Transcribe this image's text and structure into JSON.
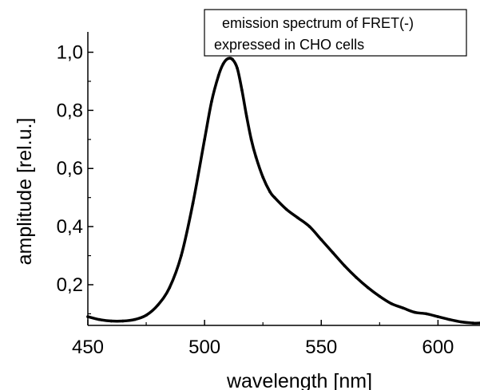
{
  "chart_data": {
    "type": "line",
    "title": "",
    "xlabel": "wavelength [nm]",
    "ylabel": "amplitude [rel.u.]",
    "xlim": [
      450,
      618
    ],
    "ylim": [
      0.06,
      1.07
    ],
    "x_ticks": [
      450,
      500,
      550,
      600
    ],
    "x_tick_labels": [
      "450",
      "500",
      "550",
      "600"
    ],
    "y_ticks": [
      0.2,
      0.4,
      0.6,
      0.8,
      1.0
    ],
    "y_tick_labels": [
      "0,2",
      "0,4",
      "0,6",
      "0,8",
      "1,0"
    ],
    "grid": false,
    "legend_position": "top-right",
    "legend_lines": [
      "emission spectrum of FRET(-)",
      "expressed in CHO cells"
    ],
    "line_color": "#000000",
    "series": [
      {
        "x": [
          450,
          455,
          460,
          465,
          470,
          475,
          480,
          485,
          490,
          495,
          500,
          503,
          506,
          508,
          510,
          512,
          514,
          516,
          518,
          520,
          522,
          525,
          528,
          530,
          535,
          540,
          545,
          550,
          555,
          560,
          565,
          570,
          575,
          580,
          585,
          590,
          595,
          600,
          605,
          610,
          615,
          618
        ],
        "y": [
          0.09,
          0.08,
          0.075,
          0.075,
          0.08,
          0.095,
          0.13,
          0.19,
          0.3,
          0.48,
          0.7,
          0.83,
          0.92,
          0.96,
          0.978,
          0.975,
          0.945,
          0.87,
          0.78,
          0.7,
          0.64,
          0.57,
          0.52,
          0.5,
          0.46,
          0.43,
          0.4,
          0.355,
          0.31,
          0.265,
          0.225,
          0.19,
          0.16,
          0.135,
          0.12,
          0.105,
          0.1,
          0.09,
          0.08,
          0.072,
          0.068,
          0.068
        ]
      }
    ]
  }
}
